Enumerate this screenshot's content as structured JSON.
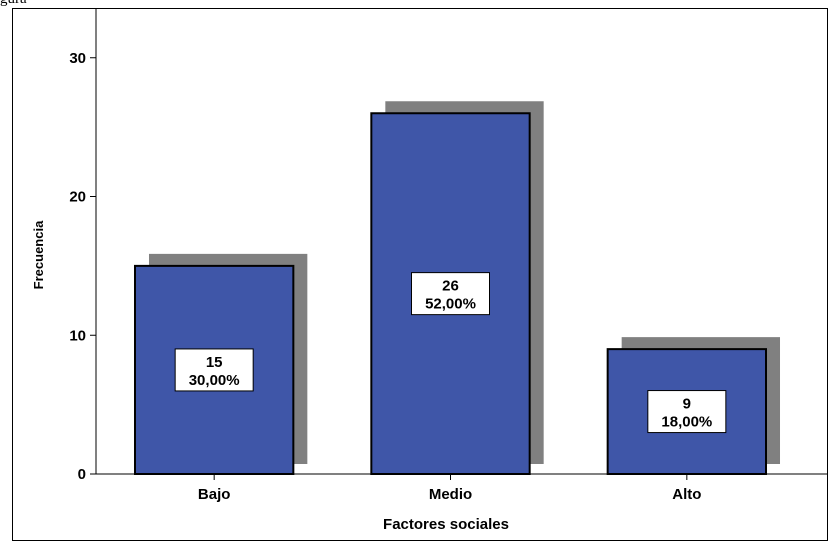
{
  "corner_text": "gura",
  "chart_data": {
    "type": "bar",
    "xlabel": "Factores sociales",
    "ylabel": "Frecuencia",
    "categories": [
      "Bajo",
      "Medio",
      "Alto"
    ],
    "values": [
      15,
      26,
      9
    ],
    "data_labels": [
      {
        "count": "15",
        "percent": "30,00%"
      },
      {
        "count": "26",
        "percent": "52,00%"
      },
      {
        "count": "9",
        "percent": "18,00%"
      }
    ],
    "ylim": [
      0,
      32
    ],
    "yticks": [
      0,
      10,
      20,
      30
    ],
    "grid": false,
    "legend": "none",
    "colors": {
      "bar": "#3f56a8",
      "shadow": "#808080",
      "outline": "#000000"
    }
  }
}
